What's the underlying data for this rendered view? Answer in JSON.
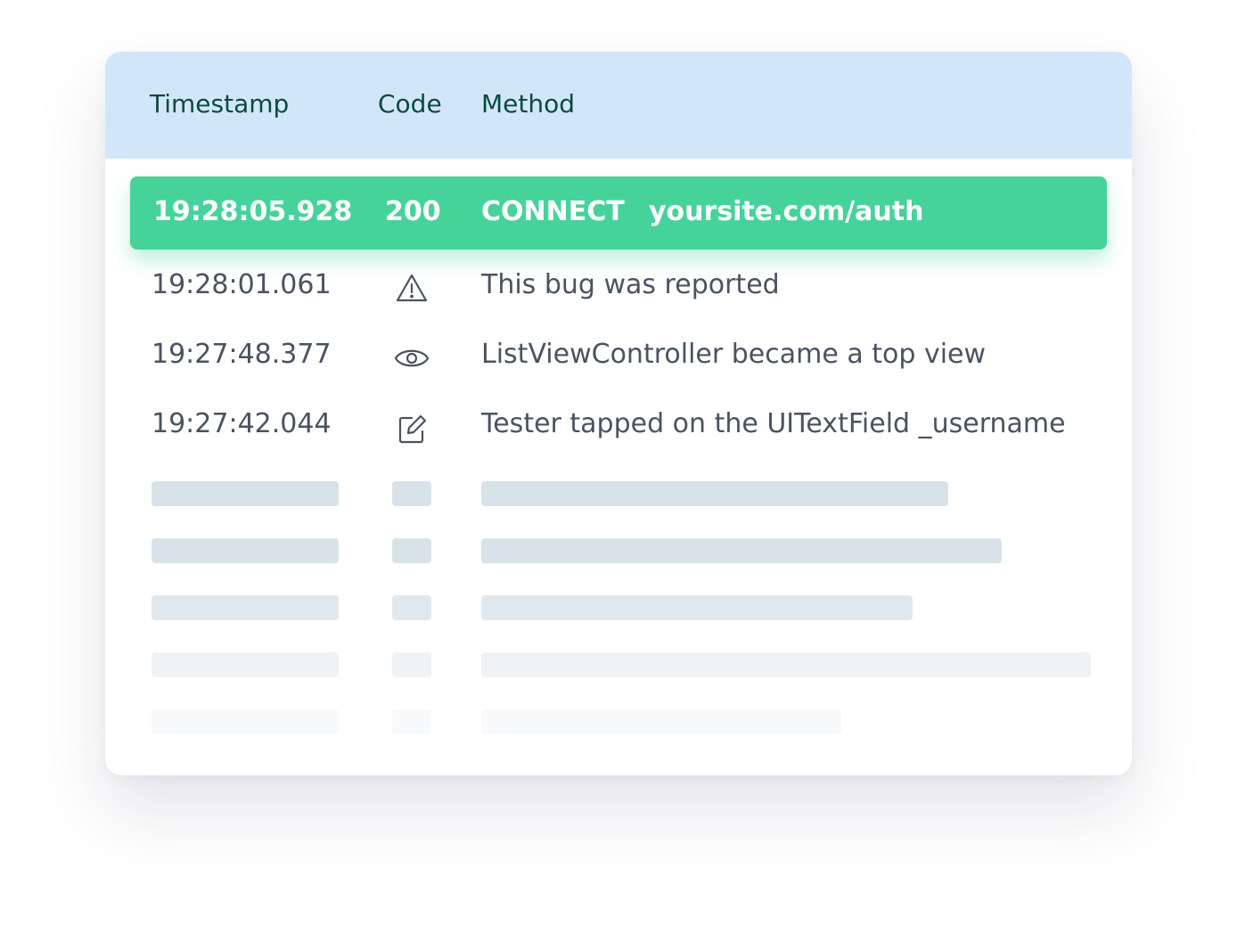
{
  "header": {
    "columns": [
      "Timestamp",
      "Code",
      "Method"
    ]
  },
  "selected_row": {
    "timestamp": "19:28:05.928",
    "code": "200",
    "method": "CONNECT",
    "url": "yoursite.com/auth",
    "color": "#46d39a"
  },
  "rows": [
    {
      "timestamp": "19:28:01.061",
      "icon": "warning-icon",
      "message": "This bug was reported"
    },
    {
      "timestamp": "19:27:48.377",
      "icon": "eye-icon",
      "message": "ListViewController became a top view"
    },
    {
      "timestamp": "19:27:42.044",
      "icon": "edit-icon",
      "message": "Tester tapped on the UITextField _username"
    }
  ],
  "colors": {
    "header_bg": "#d2e6fa",
    "header_text": "#0c4a3e",
    "text": "#4a5360"
  }
}
